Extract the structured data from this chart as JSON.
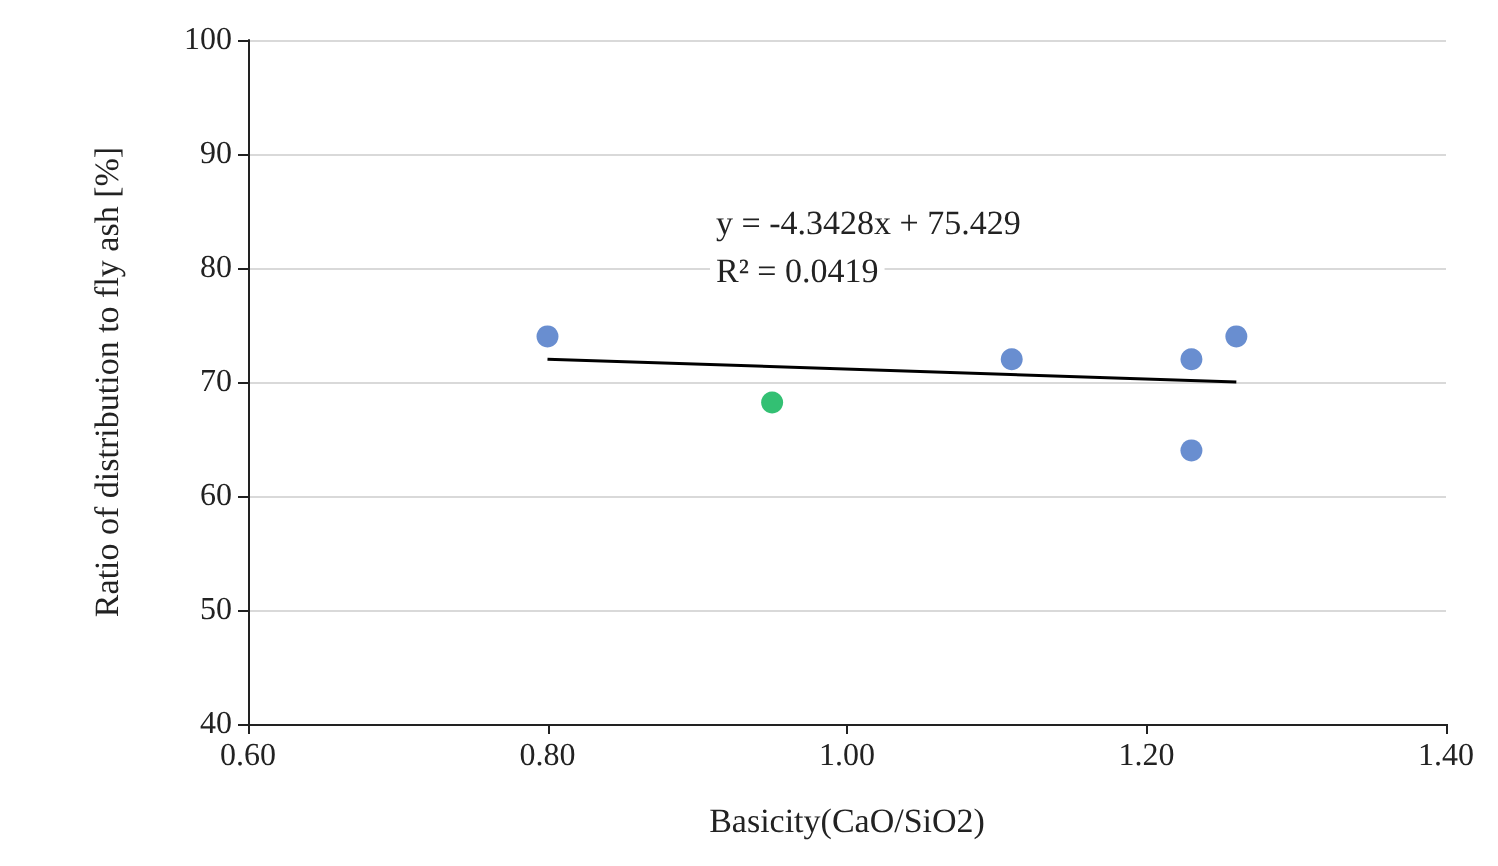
{
  "chart_data": {
    "type": "scatter",
    "xlabel": "Basicity(CaO/SiO2)",
    "ylabel": "Ratio of distribution to fly ash [%]",
    "xlim": [
      0.6,
      1.4
    ],
    "xticks": [
      {
        "value": 0.6,
        "label": "0.60"
      },
      {
        "value": 0.8,
        "label": "0.80"
      },
      {
        "value": 1.0,
        "label": "1.00"
      },
      {
        "value": 1.2,
        "label": "1.20"
      },
      {
        "value": 1.4,
        "label": "1.40"
      }
    ],
    "ylim": [
      40,
      100
    ],
    "yticks": [
      40,
      50,
      60,
      70,
      80,
      90,
      100
    ],
    "grid": "y",
    "marker": "circle",
    "annotations": [
      "y = -4.3428x + 75.429",
      "R² = 0.0419"
    ],
    "series": [
      {
        "color": "#4472c4",
        "x": [
          0.8,
          1.11,
          1.23,
          1.23,
          1.26
        ],
        "values": [
          74,
          72,
          72,
          64,
          74
        ]
      },
      {
        "color": "#00b050",
        "x": [
          0.95
        ],
        "values": [
          68.2
        ]
      },
      {
        "type": "line",
        "color": "#000000",
        "marker": "none",
        "x": [
          0.8,
          1.26
        ],
        "values": [
          72,
          70
        ]
      }
    ]
  }
}
